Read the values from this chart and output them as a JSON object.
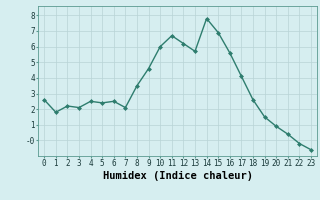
{
  "x": [
    0,
    1,
    2,
    3,
    4,
    5,
    6,
    7,
    8,
    9,
    10,
    11,
    12,
    13,
    14,
    15,
    16,
    17,
    18,
    19,
    20,
    21,
    22,
    23
  ],
  "y": [
    2.6,
    1.8,
    2.2,
    2.1,
    2.5,
    2.4,
    2.5,
    2.1,
    3.5,
    4.6,
    6.0,
    6.7,
    6.2,
    5.7,
    7.8,
    6.9,
    5.6,
    4.1,
    2.6,
    1.5,
    0.9,
    0.4,
    -0.2,
    -0.6
  ],
  "line_color": "#2e7d6e",
  "marker": "D",
  "marker_size": 2.0,
  "bg_color": "#d6eef0",
  "grid_color": "#b8d4d6",
  "xlabel": "Humidex (Indice chaleur)",
  "xlim": [
    -0.5,
    23.5
  ],
  "ylim": [
    -1.0,
    8.6
  ],
  "yticks": [
    0,
    1,
    2,
    3,
    4,
    5,
    6,
    7,
    8
  ],
  "ytick_labels": [
    "-0",
    "1",
    "2",
    "3",
    "4",
    "5",
    "6",
    "7",
    "8"
  ],
  "xticks": [
    0,
    1,
    2,
    3,
    4,
    5,
    6,
    7,
    8,
    9,
    10,
    11,
    12,
    13,
    14,
    15,
    16,
    17,
    18,
    19,
    20,
    21,
    22,
    23
  ],
  "tick_fontsize": 5.5,
  "xlabel_fontsize": 7.5,
  "line_width": 1.0
}
